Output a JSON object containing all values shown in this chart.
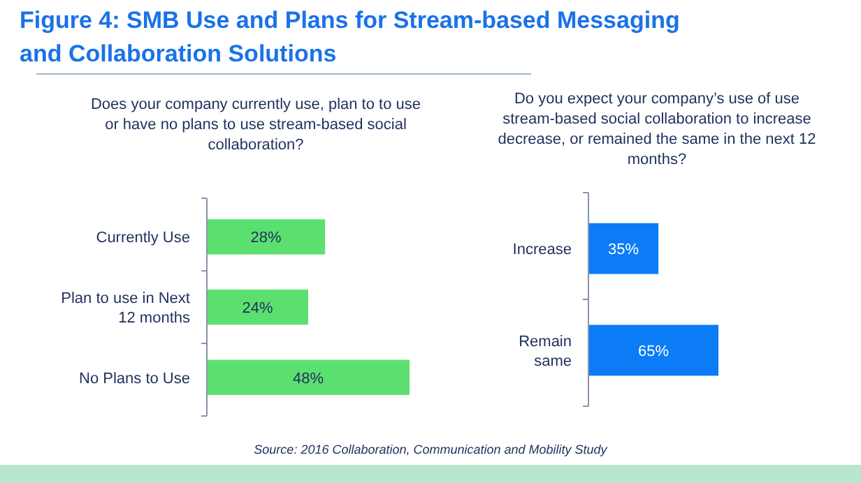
{
  "chart_data": [
    {
      "type": "bar",
      "orientation": "horizontal",
      "title": "Figure 4: SMB Use and Plans for Stream-based Messaging and Collaboration Solutions",
      "subtitle": "Does your company currently use, plan to to use or have no plans to use stream-based social collaboration?",
      "categories": [
        "Currently Use",
        "Plan to use in Next 12 months",
        "No Plans to Use"
      ],
      "values": [
        28,
        24,
        48
      ],
      "value_labels": [
        "28%",
        "24%",
        "48%"
      ],
      "color": "#5be070"
    },
    {
      "type": "bar",
      "orientation": "horizontal",
      "title": "Do you expect your company’s use of use stream-based social collaboration to increase decrease, or remained the same in the next 12 months?",
      "categories": [
        "Increase",
        "Remain same"
      ],
      "values": [
        35,
        65
      ],
      "value_labels": [
        "35%",
        "65%"
      ],
      "color": "#0b7cf6",
      "annotations": [
        "Source: 2016 Collaboration, Communication and Mobility Study"
      ]
    }
  ]
}
